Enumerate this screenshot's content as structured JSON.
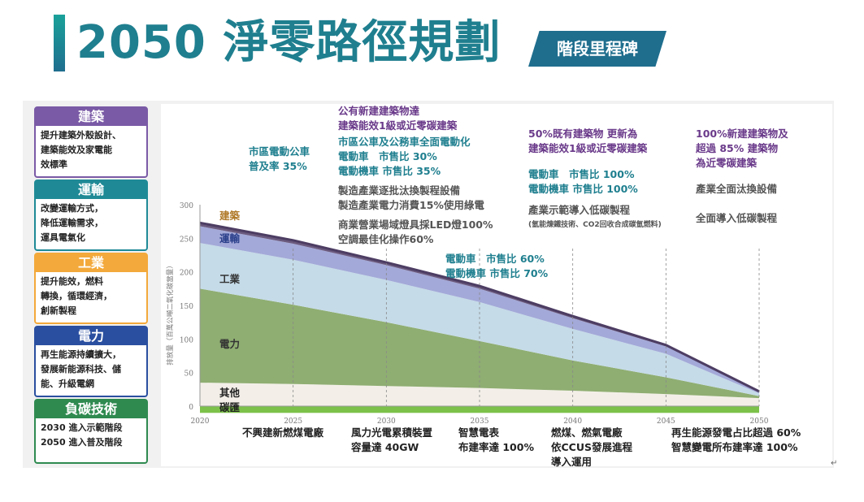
{
  "header": {
    "title": "2050 淨零路徑規劃",
    "tag": "階段里程碑"
  },
  "sectors": [
    {
      "name": "建築",
      "color": "#7a5aa6",
      "text": "提升建築外殼設計、\n建築能效及家電能\n效標準"
    },
    {
      "name": "運輸",
      "color": "#1f8a96",
      "text": "改變運輸方式，\n降低運輸需求，\n運具電氣化"
    },
    {
      "name": "工業",
      "color": "#f3a93b",
      "text": "提升能效，燃料\n轉換，循環經濟，\n創新製程"
    },
    {
      "name": "電力",
      "color": "#2a4fa0",
      "text": "再生能源持續擴大，\n發展新能源科技、儲\n能、升級電網"
    },
    {
      "name": "負碳技術",
      "color": "#2f8a50",
      "text": "2030 進入示範階段\n2050 進入普及階段"
    }
  ],
  "chart_data": {
    "type": "area",
    "ylabel": "排放量（百萬公噸二氧化碳當量）",
    "x": [
      2020,
      2025,
      2030,
      2035,
      2040,
      2045,
      2050
    ],
    "xticks": [
      "2020",
      "2025",
      "2030",
      "2035",
      "2040",
      "2045",
      "2050"
    ],
    "ylim": [
      0,
      300
    ],
    "yticks": [
      "0",
      "50",
      "100",
      "150",
      "200",
      "250",
      "300"
    ],
    "series": [
      {
        "name": "碳匯",
        "color": "#7cc24a",
        "values": [
          -10,
          -10,
          -10,
          -10,
          -10,
          -10,
          -10
        ]
      },
      {
        "name": "其他",
        "color": "#f3efe8",
        "values": [
          35,
          33,
          30,
          27,
          23,
          18,
          12
        ]
      },
      {
        "name": "電力",
        "color": "#8fae72",
        "values": [
          140,
          118,
          95,
          70,
          45,
          25,
          3
        ]
      },
      {
        "name": "工業",
        "color": "#c5dbe8",
        "values": [
          68,
          67,
          63,
          58,
          47,
          35,
          4
        ]
      },
      {
        "name": "運輸",
        "color": "#a3a9d8",
        "values": [
          25,
          24,
          22,
          20,
          16,
          11,
          2
        ]
      },
      {
        "name": "建築",
        "color": "#6b5a7e",
        "values": [
          5,
          5,
          4,
          4,
          3,
          2,
          1
        ]
      }
    ],
    "grid_dashed_x": true,
    "series_label_color": {
      "建築": "#b07a2a",
      "運輸": "#2a3f8a",
      "工業": "#333",
      "電力": "#333",
      "其他": "#222",
      "碳匯": "#222"
    },
    "top_annotations": [
      {
        "text": "市區電動公車\n普及率 35%",
        "color": "teal"
      },
      {
        "text": "公有新建建築物達\n建築能效1級或近零碳建築",
        "color": "purple"
      },
      {
        "text": "市區公車及公務車全面電動化\n電動車　市售比 30%\n電動機車 市售比 35%",
        "color": "teal"
      },
      {
        "text": "製造產業逐批汰換製程設備\n製造產業電力消費15%使用綠電",
        "color": "gray"
      },
      {
        "text": "商業營業場域燈具採LED燈100%\n空調最佳化操作60%",
        "color": "gray"
      },
      {
        "text": "電動車　市售比 60%\n電動機車 市售比 70%",
        "color": "teal"
      },
      {
        "text": "50%既有建築物 更新為\n建築能效1級或近零碳建築",
        "color": "purple"
      },
      {
        "text": "電動車　市售比 100%\n電動機車 市售比 100%",
        "color": "teal"
      },
      {
        "text": "產業示範導入低碳製程",
        "color": "gray"
      },
      {
        "text": "(氫能煉鐵技術、CO2回收合成碳氫燃料)",
        "color": "gray"
      },
      {
        "text": "100%新建建築物及\n超過 85% 建築物\n為近零碳建築",
        "color": "purple"
      },
      {
        "text": "產業全面汰換設備",
        "color": "gray"
      },
      {
        "text": "全面導入低碳製程",
        "color": "gray"
      }
    ],
    "bottom_annotations": [
      "不興建新燃煤電廠",
      "風力光電累積裝置\n容量達 40GW",
      "智慧電表\n布建率達 100%",
      "燃煤、燃氣電廠\n依CCUS發展進程\n導入運用",
      "再生能源發電占比超過 60%\n智慧變電所布建率達 100%"
    ]
  }
}
